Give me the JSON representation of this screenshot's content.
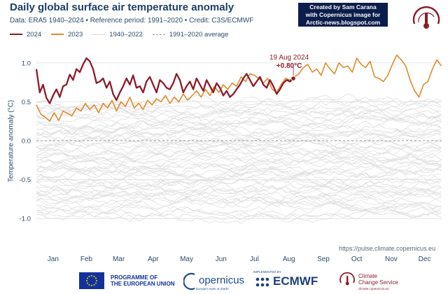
{
  "header": {
    "title": "Daily global surface air temperature anomaly",
    "subtitle": "Data: ERA5 1940–2024  •  Reference period: 1991–2020  •  Credit: C3S/ECMWF"
  },
  "legend": [
    {
      "label": "2024",
      "color": "#8c1c2a",
      "style": "solid"
    },
    {
      "label": "2023",
      "color": "#e08a2a",
      "style": "solid"
    },
    {
      "label": "1940–2022",
      "color": "#dcdcdc",
      "style": "solid"
    },
    {
      "label": "1991–2020 average",
      "color": "#999999",
      "style": "dashed"
    }
  ],
  "credit_box": {
    "line1": "Created by Sam Carana",
    "line2": "with Copernicus image for",
    "line3": "Arctic-news.blogspot.com"
  },
  "source_url": "https://pulse.climate.copernicus.eu",
  "footer": {
    "eu_line1": "PROGRAMME OF",
    "eu_line2": "THE EUROPEAN UNION",
    "copernicus": "opernicus",
    "copernicus_sub": "Europe's eyes on Earth",
    "ecmwf_impl": "IMPLEMENTED BY",
    "ecmwf": "ECMWF",
    "ccs_line1": "Climate",
    "ccs_line2": "Change Service",
    "ccs_sub": "climate.copernicus.eu"
  },
  "chart_data": {
    "type": "line",
    "title": "Daily global surface air temperature anomaly",
    "ylabel": "Temperature anomaly (°C)",
    "ylim": [
      -1.25,
      1.25
    ],
    "yticks": [
      1.0,
      0.5,
      0.0,
      -0.5,
      -1.0
    ],
    "ytick_labels": [
      "1.0",
      "0.5",
      "0.0",
      "-0.5",
      "-1.0"
    ],
    "xlim": [
      1,
      366
    ],
    "months": [
      "Jan",
      "Feb",
      "Mar",
      "Apr",
      "May",
      "Jun",
      "Jul",
      "Aug",
      "Sep",
      "Oct",
      "Nov",
      "Dec"
    ],
    "month_centers": [
      16,
      46,
      75,
      106,
      136,
      167,
      197,
      228,
      259,
      289,
      320,
      350
    ],
    "grid": true,
    "annotation": {
      "date": "19 Aug 2024",
      "value": "+0.80°C",
      "x": 232,
      "y": 0.8
    },
    "series": [
      {
        "name": "2024",
        "color": "#8c1c2a",
        "x": [
          1,
          4,
          7,
          10,
          13,
          16,
          19,
          22,
          25,
          28,
          31,
          34,
          37,
          40,
          43,
          46,
          49,
          52,
          55,
          58,
          61,
          64,
          67,
          70,
          73,
          76,
          79,
          82,
          85,
          88,
          91,
          94,
          97,
          100,
          103,
          106,
          109,
          112,
          115,
          118,
          121,
          124,
          127,
          130,
          133,
          136,
          139,
          142,
          145,
          148,
          151,
          154,
          157,
          160,
          163,
          166,
          169,
          172,
          175,
          178,
          181,
          184,
          187,
          190,
          193,
          196,
          199,
          202,
          205,
          208,
          211,
          214,
          217,
          220,
          223,
          226,
          229,
          232
        ],
        "y": [
          0.92,
          0.62,
          0.72,
          0.55,
          0.48,
          0.58,
          0.66,
          0.56,
          0.7,
          0.72,
          0.85,
          0.78,
          0.92,
          0.88,
          0.98,
          1.06,
          1.02,
          0.92,
          0.74,
          0.76,
          0.8,
          0.68,
          0.76,
          0.6,
          0.52,
          0.62,
          0.7,
          0.8,
          0.72,
          0.84,
          0.68,
          0.7,
          0.62,
          0.76,
          0.82,
          0.72,
          0.62,
          0.78,
          0.74,
          0.68,
          0.66,
          0.74,
          0.86,
          0.78,
          0.62,
          0.7,
          0.76,
          0.66,
          0.8,
          0.72,
          0.64,
          0.78,
          0.7,
          0.62,
          0.74,
          0.68,
          0.58,
          0.64,
          0.56,
          0.6,
          0.66,
          0.72,
          0.8,
          0.86,
          0.78,
          0.7,
          0.76,
          0.82,
          0.72,
          0.68,
          0.78,
          0.7,
          0.6,
          0.66,
          0.74,
          0.78,
          0.76,
          0.8
        ]
      },
      {
        "name": "2023",
        "color": "#e08a2a",
        "x": [
          1,
          5,
          9,
          13,
          17,
          21,
          25,
          29,
          33,
          37,
          41,
          45,
          49,
          53,
          57,
          61,
          65,
          69,
          73,
          77,
          81,
          85,
          89,
          93,
          97,
          101,
          105,
          109,
          113,
          117,
          121,
          125,
          129,
          133,
          137,
          141,
          145,
          149,
          153,
          157,
          161,
          165,
          169,
          173,
          177,
          181,
          185,
          189,
          193,
          197,
          201,
          205,
          209,
          213,
          217,
          221,
          225,
          229,
          233,
          237,
          241,
          245,
          249,
          253,
          257,
          261,
          265,
          269,
          273,
          277,
          281,
          285,
          289,
          293,
          297,
          301,
          305,
          309,
          313,
          317,
          321,
          325,
          329,
          333,
          337,
          341,
          345,
          349,
          353,
          357,
          361,
          365
        ],
        "y": [
          0.46,
          0.34,
          0.3,
          0.25,
          0.36,
          0.26,
          0.38,
          0.35,
          0.32,
          0.42,
          0.38,
          0.48,
          0.4,
          0.46,
          0.36,
          0.48,
          0.42,
          0.52,
          0.38,
          0.5,
          0.44,
          0.56,
          0.42,
          0.48,
          0.4,
          0.52,
          0.46,
          0.54,
          0.5,
          0.58,
          0.48,
          0.56,
          0.5,
          0.6,
          0.52,
          0.58,
          0.64,
          0.56,
          0.66,
          0.58,
          0.7,
          0.62,
          0.72,
          0.66,
          0.74,
          0.7,
          0.82,
          0.76,
          0.86,
          0.84,
          0.8,
          0.74,
          0.8,
          0.66,
          0.62,
          0.72,
          0.8,
          0.78,
          0.82,
          0.86,
          0.94,
          0.98,
          0.88,
          0.92,
          0.84,
          1.0,
          0.92,
          0.86,
          1.0,
          0.94,
          0.96,
          0.88,
          1.06,
          0.98,
          0.94,
          1.02,
          0.82,
          0.8,
          0.76,
          0.84,
          0.98,
          1.1,
          1.04,
          0.96,
          0.78,
          0.64,
          0.56,
          0.72,
          0.76,
          0.92,
          1.04,
          0.96
        ]
      }
    ],
    "background_series": {
      "name": "1940–2022",
      "years_range": "1940–2022",
      "y_range": [
        -1.1,
        0.65
      ]
    },
    "reference_line": {
      "name": "1991–2020 average",
      "y": 0.0
    }
  }
}
